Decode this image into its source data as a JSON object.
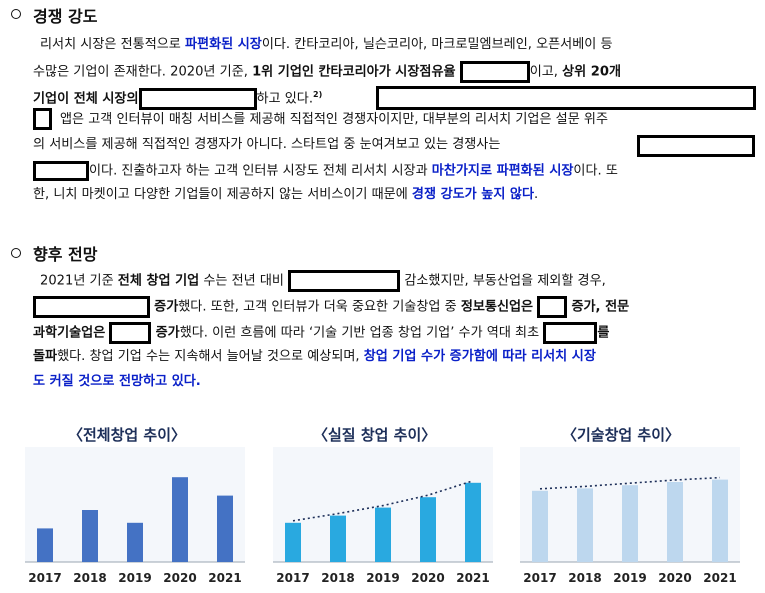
{
  "section1": {
    "heading": "경쟁 강도",
    "lines": [
      [
        "리서치 시장은 전통적으로 ",
        "파편화된 시장",
        "이다. 칸타코리아, 닐슨코리아, 마크로밀엠브레인, 오픈서베이 등"
      ],
      [
        "수많은 기업이 존재한다. 2020년 기준, ",
        "1위 기업인 칸타코리아가 시장점유율",
        "이고, ",
        "상위 20개"
      ],
      [
        "기업이 전체 시장의",
        "하고 있다.",
        "2)"
      ],
      [
        "앱은 고객 인터뷰이 매칭 서비스를 제공해 직접적인 경쟁자이지만, 대부분의 리서치 기업은 설문 위주"
      ],
      [
        "의 서비스를 제공해 직접적인 경쟁자가 아니다. 스타트업 중 눈여겨보고 있는 경쟁사는"
      ],
      [
        "이다. 진출하고자 하는 고객 인터뷰 시장도 전체 리서치 시장과 ",
        "마찬가지로 파편화된 시장",
        "이다. 또"
      ],
      [
        "한, 니치 마켓이고 다양한 기업들이 제공하지 않는 서비스이기 때문에 ",
        "경쟁 강도가 높지 않다",
        "."
      ]
    ]
  },
  "section2": {
    "heading": "향후 전망",
    "lines": [
      [
        "2021년 기준 ",
        "전체 창업 기업",
        " 수는 전년 대비",
        "감소했지만, 부동산업을 제외할 경우,"
      ],
      [
        "증가",
        "했다. 또한, 고객 인터뷰가 더욱 중요한 기술창업 중 ",
        "정보통신업은",
        "증가, 전문"
      ],
      [
        "과학기술업은",
        "증가",
        "했다. 이런 흐름에 따라 ‘기술 기반 업종 창업 기업’ 수가 역대 최초",
        "를"
      ],
      [
        "돌파",
        "했다. 창업 기업 수는 지속해서 늘어날 것으로 예상되며, ",
        "창업 기업 수가 증가함에 따라 리서치 시장"
      ],
      [
        "도 커질 것으로 전망하고 있다."
      ]
    ]
  },
  "colors": {
    "blue_text": "#0a20c8",
    "chart1": "#4472c4",
    "chart2": "#29a9e0",
    "chart3": "#bdd7ee",
    "title": "#1d2f59"
  },
  "chart_data": [
    {
      "type": "bar",
      "title": "〈전체창업 추이〉",
      "categories": [
        "2017",
        "2018",
        "2019",
        "2020",
        "2021"
      ],
      "values": [
        42,
        65,
        49,
        106,
        83
      ],
      "ylim": [
        0,
        125
      ],
      "trendline": false,
      "color": "#4472c4"
    },
    {
      "type": "bar",
      "title": "〈실질 창업 추이〉",
      "categories": [
        "2017",
        "2018",
        "2019",
        "2020",
        "2021"
      ],
      "values": [
        49,
        58,
        68,
        81,
        99
      ],
      "ylim": [
        0,
        125
      ],
      "trendline": true,
      "color": "#29a9e0"
    },
    {
      "type": "bar",
      "title": "〈기술창업 추이〉",
      "categories": [
        "2017",
        "2018",
        "2019",
        "2020",
        "2021"
      ],
      "values": [
        89,
        92,
        96,
        100,
        103
      ],
      "ylim": [
        0,
        125
      ],
      "trendline": true,
      "color": "#bdd7ee"
    }
  ]
}
